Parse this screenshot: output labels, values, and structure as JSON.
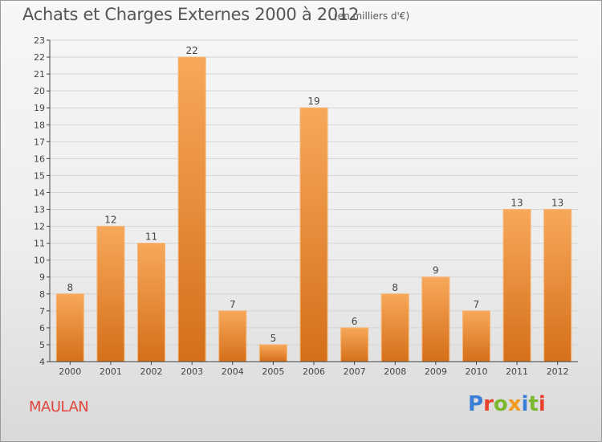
{
  "title": "Achats et Charges Externes 2000 à 2012",
  "unit_note": "(en milliers d'€)",
  "commune": "MAULAN",
  "logo": {
    "text": "Proxiti",
    "letters": [
      {
        "ch": "P",
        "color": "#3a7fd5"
      },
      {
        "ch": "r",
        "color": "#e8432f"
      },
      {
        "ch": "o",
        "color": "#7cb82f"
      },
      {
        "ch": "x",
        "color": "#f29a1f"
      },
      {
        "ch": "i",
        "color": "#3a7fd5"
      },
      {
        "ch": "t",
        "color": "#7cb82f"
      },
      {
        "ch": "i",
        "color": "#e8432f"
      }
    ]
  },
  "colors": {
    "bar_light": "#f7a85a",
    "bar_dark": "#d56f19",
    "bar_edge": "#f6b474",
    "axis": "#444444",
    "grid": "#d4d4d4",
    "text": "#444444"
  },
  "chart_data": {
    "type": "bar",
    "categories": [
      "2000",
      "2001",
      "2002",
      "2003",
      "2004",
      "2005",
      "2006",
      "2007",
      "2008",
      "2009",
      "2010",
      "2011",
      "2012"
    ],
    "values": [
      8,
      12,
      11,
      22,
      7,
      5,
      19,
      6,
      8,
      9,
      7,
      13,
      13
    ],
    "ylim": [
      4,
      23
    ],
    "yticks": [
      4,
      5,
      6,
      7,
      8,
      9,
      10,
      11,
      12,
      13,
      14,
      15,
      16,
      17,
      18,
      19,
      20,
      21,
      22,
      23
    ],
    "data_labels": true,
    "grid": true
  }
}
